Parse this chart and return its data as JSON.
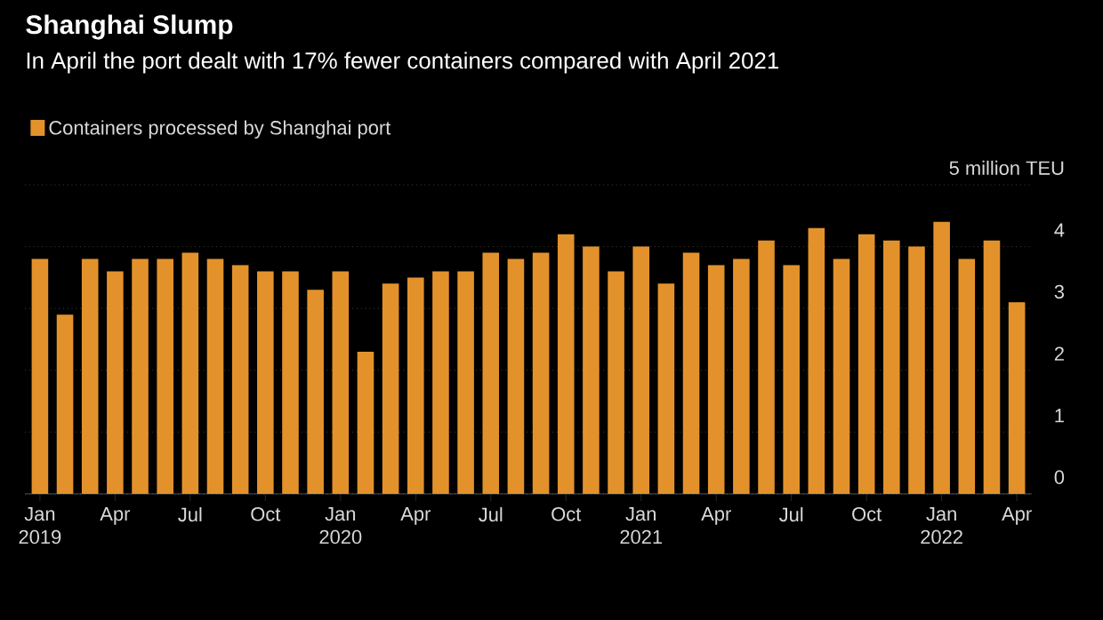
{
  "chart_data": {
    "type": "bar",
    "title": "Shanghai Slump",
    "subtitle": "In April the port dealt with 17% fewer containers compared with April 2021",
    "categories": [
      "Jan 2019",
      null,
      null,
      "Apr",
      null,
      null,
      "Jul",
      null,
      null,
      "Oct",
      null,
      null,
      "Jan 2020",
      null,
      null,
      "Apr",
      null,
      null,
      "Jul",
      null,
      null,
      "Oct",
      null,
      null,
      "Jan 2021",
      null,
      null,
      "Apr",
      null,
      null,
      "Jul",
      null,
      null,
      "Oct",
      null,
      null,
      "Jan 2022",
      null,
      null,
      "Apr"
    ],
    "series": [
      {
        "name": "Containers processed by Shanghai port",
        "color": "#e3922b",
        "values": [
          3.8,
          2.9,
          3.8,
          3.6,
          3.8,
          3.8,
          3.9,
          3.8,
          3.7,
          3.6,
          3.6,
          3.3,
          3.6,
          2.3,
          3.4,
          3.5,
          3.6,
          3.6,
          3.9,
          3.8,
          3.9,
          4.2,
          4.0,
          3.6,
          4.0,
          3.4,
          3.9,
          3.7,
          3.8,
          4.1,
          3.7,
          4.3,
          3.8,
          4.2,
          4.1,
          4.0,
          4.4,
          3.8,
          4.1,
          3.1
        ]
      }
    ],
    "ylim": [
      0,
      5
    ],
    "yticks": [
      0,
      1,
      2,
      3,
      4,
      {
        "value": 5,
        "label": "5 million TEU"
      }
    ],
    "grid": "y",
    "legend": "top left"
  }
}
